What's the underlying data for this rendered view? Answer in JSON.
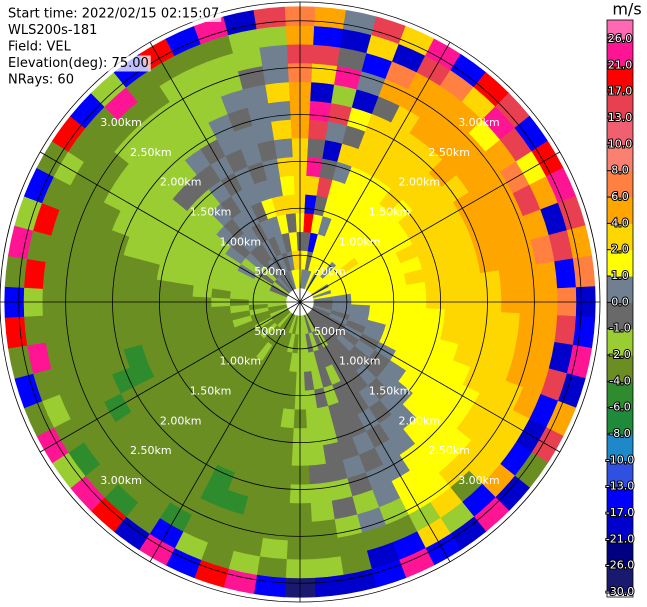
{
  "chart_data": {
    "type": "ppi",
    "annotations": [
      "Start time: 2022/02/15 02:15:07",
      "WLS200s-181",
      "Field: VEL",
      "Elevation(deg): 75.00",
      "NRays: 60"
    ],
    "colorbar_label": "m/s",
    "rlim": [
      0,
      3200
    ],
    "rticks": [
      {
        "value": 500,
        "label": "500m"
      },
      {
        "value": 1000,
        "label": "1.00km"
      },
      {
        "value": 1500,
        "label": "1.50km"
      },
      {
        "value": 2000,
        "label": "2.00km"
      },
      {
        "value": 2500,
        "label": "2.50km"
      },
      {
        "value": 3000,
        "label": "3.00km"
      }
    ],
    "ranges": [
      250,
      450,
      650,
      850,
      1050,
      1250,
      1450,
      1650,
      1850,
      2050,
      2250,
      2450,
      2650,
      2850,
      3050
    ],
    "azimuths": [
      0,
      6,
      12,
      18,
      24,
      30,
      36,
      42,
      48,
      54,
      60,
      66,
      72,
      78,
      84,
      90,
      96,
      102,
      108,
      114,
      120,
      126,
      132,
      138,
      144,
      150,
      156,
      162,
      168,
      174,
      180,
      186,
      192,
      198,
      204,
      210,
      216,
      222,
      228,
      234,
      240,
      246,
      252,
      258,
      264,
      270,
      276,
      282,
      288,
      294,
      300,
      306,
      312,
      318,
      324,
      330,
      336,
      342,
      348,
      354
    ],
    "cticks": [
      {
        "value": -30,
        "label": "-30.0"
      },
      {
        "value": -26,
        "label": "-26.0"
      },
      {
        "value": -21,
        "label": "-21.0"
      },
      {
        "value": -17,
        "label": "-17.0"
      },
      {
        "value": -13,
        "label": "-13.0"
      },
      {
        "value": -10,
        "label": "-10.0"
      },
      {
        "value": -8,
        "label": "-8.0"
      },
      {
        "value": -6,
        "label": "-6.0"
      },
      {
        "value": -4,
        "label": "-4.0"
      },
      {
        "value": -2,
        "label": "-2.0"
      },
      {
        "value": -1,
        "label": "-1.0"
      },
      {
        "value": 0,
        "label": "0.0"
      },
      {
        "value": 1,
        "label": "1.0"
      },
      {
        "value": 2,
        "label": "2.0"
      },
      {
        "value": 4,
        "label": "4.0"
      },
      {
        "value": 6,
        "label": "6.0"
      },
      {
        "value": 8,
        "label": "8.0"
      },
      {
        "value": 10,
        "label": "10.0"
      },
      {
        "value": 13,
        "label": "13.0"
      },
      {
        "value": 17,
        "label": "17.0"
      },
      {
        "value": 21,
        "label": "21.0"
      },
      {
        "value": 26,
        "label": "26.0"
      }
    ],
    "colors": [
      "#191970",
      "#000080",
      "#0000cd",
      "#0000ff",
      "#3050e0",
      "#1e88c8",
      "#1f8a3a",
      "#2e8b2e",
      "#6b8e23",
      "#9acd32",
      "#696969",
      "#708090",
      "#ffff00",
      "#ffd700",
      "#ffa500",
      "#ff8040",
      "#fa8072",
      "#f06070",
      "#e84050",
      "#ff0000",
      "#ff1493",
      "#ff69b4"
    ],
    "values": [
      [
        1.5,
        3,
        -0.5,
        1.5,
        3,
        3,
        3,
        3,
        5,
        5,
        5,
        7,
        15,
        5,
        7
      ],
      [
        0.5,
        1.5,
        -0.5,
        19,
        -15,
        3,
        23,
        -0.5,
        15,
        23,
        -19,
        3,
        15,
        -15,
        5
      ],
      [
        0.5,
        -0.5,
        -15,
        1.5,
        -0.5,
        15,
        -0.5,
        -19,
        0.5,
        15,
        -1.5,
        23,
        -0.5,
        -19,
        0.5
      ],
      [
        0.5,
        1.5,
        1.5,
        0.5,
        1.5,
        1.5,
        0.5,
        3,
        -0.5,
        1.5,
        -19,
        0.5,
        -15,
        3,
        15
      ],
      [
        1.5,
        1.5,
        1.5,
        1.5,
        1.5,
        1.5,
        1.5,
        3,
        3,
        3,
        -0.5,
        5,
        7,
        -19,
        3
      ],
      [
        0.5,
        1.5,
        1.5,
        1.5,
        1.5,
        1.5,
        1.5,
        3,
        3,
        3,
        3,
        5,
        5,
        15,
        23
      ],
      [
        1.5,
        1.5,
        1.5,
        1.5,
        1.5,
        1.5,
        1.5,
        3,
        3,
        3,
        5,
        5,
        5,
        7,
        -15
      ],
      [
        1.5,
        0.5,
        1.5,
        1.5,
        1.5,
        1.5,
        3,
        3,
        3,
        3,
        5,
        5,
        5,
        3,
        19
      ],
      [
        1.5,
        1.5,
        1.5,
        1.5,
        1.5,
        1.5,
        1.5,
        3,
        3,
        5,
        5,
        5,
        1.5,
        23,
        15
      ],
      [
        1.5,
        1.5,
        3,
        1.5,
        1.5,
        1.5,
        3,
        3,
        3,
        3,
        5,
        5,
        5,
        15,
        -15
      ],
      [
        0.5,
        1.5,
        1.5,
        1.5,
        1.5,
        1.5,
        3,
        3,
        3,
        5,
        5,
        5,
        7,
        1.5,
        19
      ],
      [
        1.5,
        1.5,
        1.5,
        1.5,
        1.5,
        3,
        3,
        3,
        3,
        5,
        5,
        5,
        15,
        5,
        23
      ],
      [
        0.5,
        1.5,
        1.5,
        1.5,
        1.5,
        1.5,
        3,
        3,
        3,
        5,
        5,
        5,
        5,
        -19,
        15
      ],
      [
        1.5,
        1.5,
        1.5,
        1.5,
        1.5,
        3,
        3,
        3,
        3,
        5,
        5,
        5,
        7,
        15,
        5
      ],
      [
        0.5,
        0.5,
        1.5,
        1.5,
        1.5,
        1.5,
        3,
        3,
        3,
        3,
        5,
        5,
        5,
        -15,
        7
      ],
      [
        -0.5,
        0.5,
        1.5,
        1.5,
        1.5,
        1.5,
        3,
        3,
        3,
        3,
        5,
        5,
        5,
        7,
        -19
      ],
      [
        -0.5,
        0.5,
        0.5,
        1.5,
        1.5,
        1.5,
        1.5,
        3,
        3,
        3,
        3,
        5,
        5,
        15,
        -15
      ],
      [
        -0.5,
        0.5,
        0.5,
        1.5,
        1.5,
        1.5,
        1.5,
        3,
        3,
        3,
        3,
        5,
        5,
        -19,
        23
      ],
      [
        0.5,
        -0.5,
        0.5,
        0.5,
        1.5,
        1.5,
        1.5,
        1.5,
        3,
        3,
        3,
        5,
        5,
        15,
        -19
      ],
      [
        -0.5,
        0.5,
        -0.5,
        0.5,
        1.5,
        1.5,
        1.5,
        1.5,
        1.5,
        3,
        3,
        3,
        5,
        -15,
        5
      ],
      [
        -0.5,
        -0.5,
        0.5,
        -0.5,
        0.5,
        1.5,
        1.5,
        1.5,
        1.5,
        1.5,
        3,
        3,
        3,
        -19,
        15
      ],
      [
        -0.5,
        -0.5,
        -0.5,
        0.5,
        -0.5,
        0.5,
        1.5,
        1.5,
        1.5,
        1.5,
        3,
        3,
        3,
        -15,
        -3
      ],
      [
        -0.5,
        -0.5,
        0.5,
        -0.5,
        -0.5,
        0.5,
        0.5,
        1.5,
        1.5,
        1.5,
        1.5,
        3,
        3,
        5,
        -19
      ],
      [
        -0.5,
        -0.5,
        -0.5,
        -0.5,
        0.5,
        -0.5,
        0.5,
        0.5,
        1.5,
        1.5,
        1.5,
        3,
        -3,
        -15,
        23
      ],
      [
        -0.5,
        -0.5,
        -0.5,
        -0.5,
        -0.5,
        0.5,
        -0.5,
        0.5,
        0.5,
        1.5,
        1.5,
        1.5,
        3,
        -1.5,
        -19
      ],
      [
        -0.5,
        -1.5,
        -0.5,
        -0.5,
        -0.5,
        -0.5,
        0.5,
        -0.5,
        0.5,
        0.5,
        1.5,
        1.5,
        -1.5,
        3,
        -15
      ],
      [
        -1.5,
        -0.5,
        -0.5,
        -1.5,
        -0.5,
        -0.5,
        -0.5,
        0.5,
        -0.5,
        0.5,
        0.5,
        -1.5,
        -3,
        -15,
        23
      ],
      [
        -0.5,
        -1.5,
        -0.5,
        -0.5,
        -1.5,
        -0.5,
        -0.5,
        -0.5,
        0.5,
        -0.5,
        -1.5,
        0.5,
        -3,
        -19,
        -15
      ],
      [
        -1.5,
        -0.5,
        -1.5,
        -1.5,
        -0.5,
        -1.5,
        -1.5,
        -0.5,
        -0.5,
        -1.5,
        -0.5,
        -1.5,
        -3,
        -3,
        -19
      ],
      [
        -1.5,
        -1.5,
        -1.5,
        -0.5,
        -1.5,
        -1.5,
        -1.5,
        -1.5,
        -0.5,
        -1.5,
        -1.5,
        -3,
        -3,
        -1.5,
        -19
      ],
      [
        -1.5,
        -1.5,
        -1.5,
        -1.5,
        -1.5,
        -3,
        -1.5,
        -1.5,
        -3,
        -1.5,
        -3,
        -3,
        -3,
        -1.5,
        -28
      ],
      [
        -1.5,
        -3,
        -1.5,
        -3,
        -3,
        -1.5,
        -3,
        -3,
        -3,
        -3,
        -3,
        -3,
        -1.5,
        -3,
        -15
      ],
      [
        -3,
        -1.5,
        -3,
        -3,
        -3,
        -3,
        -3,
        -3,
        -3,
        -3,
        -3,
        -3,
        -3,
        -1.5,
        23
      ],
      [
        -1.5,
        -3,
        -3,
        -3,
        -3,
        -3,
        -3,
        -3,
        -3,
        -3,
        -5,
        -3,
        -3,
        -3,
        19
      ],
      [
        -3,
        -3,
        -3,
        -3,
        -3,
        -3,
        -3,
        -3,
        -3,
        -5,
        -5,
        -3,
        -3,
        -1.5,
        -15
      ],
      [
        -3,
        -3,
        -3,
        -3,
        -3,
        -3,
        -3,
        -3,
        -3,
        -3,
        -3,
        -3,
        -5,
        -15,
        23
      ],
      [
        -3,
        -3,
        -1.5,
        -3,
        -3,
        -3,
        -3,
        -3,
        -3,
        -3,
        -3,
        -3,
        -3,
        -3,
        -19
      ],
      [
        -1.5,
        -3,
        -3,
        -3,
        -3,
        -3,
        -3,
        -3,
        -3,
        -3,
        -3,
        -3,
        -3,
        -5,
        19
      ],
      [
        -3,
        -1.5,
        -3,
        -3,
        -3,
        -3,
        -3,
        -3,
        -3,
        -3,
        -3,
        -3,
        -3,
        -3,
        23
      ],
      [
        -3,
        -3,
        -3,
        -3,
        -3,
        -3,
        -3,
        -3,
        -3,
        -3,
        -3,
        -3,
        -3,
        -5,
        -1.5
      ],
      [
        -3,
        -1.5,
        -3,
        -3,
        -3,
        -3,
        -3,
        -3,
        -3,
        -3,
        -5,
        -3,
        -3,
        -3,
        23
      ],
      [
        -1.5,
        -3,
        -3,
        -3,
        -3,
        -3,
        -3,
        -3,
        -5,
        -5,
        -3,
        -3,
        -3,
        -1.5,
        -3
      ],
      [
        -3,
        -3,
        -1.5,
        -3,
        -3,
        -3,
        -3,
        -3,
        -5,
        -3,
        -3,
        -3,
        -3,
        -3,
        -15
      ],
      [
        -3,
        -1.5,
        -3,
        -3,
        -3,
        -3,
        -3,
        -3,
        -3,
        -3,
        -3,
        -3,
        -3,
        23,
        -3
      ],
      [
        -1.5,
        -3,
        -1.5,
        -3,
        -3,
        -3,
        -3,
        -3,
        -3,
        -3,
        -3,
        -3,
        -3,
        -3,
        19
      ],
      [
        -1.5,
        -1.5,
        -3,
        -1.5,
        -3,
        -3,
        -3,
        -3,
        -3,
        -3,
        -3,
        -3,
        -3,
        -1.5,
        -15
      ],
      [
        -1.5,
        -1.5,
        -1.5,
        -3,
        -1.5,
        -3,
        -3,
        -3,
        -3,
        -3,
        -3,
        -3,
        -3,
        19,
        -3
      ],
      [
        -1.5,
        -1.5,
        -1.5,
        -1.5,
        -1.5,
        -1.5,
        -1.5,
        -3,
        -3,
        -3,
        -3,
        -3,
        -3,
        -3,
        23
      ],
      [
        -1.5,
        -1.5,
        -1.5,
        -1.5,
        -1.5,
        -1.5,
        -1.5,
        -1.5,
        -1.5,
        -3,
        -3,
        -3,
        -3,
        19,
        -1.5
      ],
      [
        -0.5,
        -1.5,
        -1.5,
        -1.5,
        -1.5,
        -1.5,
        -1.5,
        -1.5,
        -1.5,
        -1.5,
        -3,
        -3,
        -3,
        -3,
        -15
      ],
      [
        -0.5,
        -1.5,
        0.5,
        -1.5,
        -1.5,
        -1.5,
        -1.5,
        -1.5,
        -1.5,
        -1.5,
        -1.5,
        -3,
        -3,
        -1.5,
        -3
      ],
      [
        -1.5,
        -0.5,
        -1.5,
        0.5,
        -1.5,
        -1.5,
        -1.5,
        -1.5,
        -1.5,
        -1.5,
        -1.5,
        -3,
        -3,
        -3,
        19
      ],
      [
        -0.5,
        -1.5,
        0.5,
        -0.5,
        0.5,
        -1.5,
        -1.5,
        -0.5,
        -1.5,
        -1.5,
        -1.5,
        -1.5,
        -3,
        -3,
        -15
      ],
      [
        0.5,
        -0.5,
        -0.5,
        0.5,
        -0.5,
        0.5,
        -1.5,
        -0.5,
        -1.5,
        -1.5,
        -1.5,
        -1.5,
        -3,
        23,
        -1.5
      ],
      [
        -0.5,
        0.5,
        -0.5,
        0.5,
        0.5,
        -0.5,
        0.5,
        -0.5,
        0.5,
        -1.5,
        -1.5,
        -1.5,
        -3,
        -3,
        -15
      ],
      [
        0.5,
        -0.5,
        0.5,
        -0.5,
        0.5,
        0.5,
        -0.5,
        0.5,
        -0.5,
        -1.5,
        -1.5,
        -1.5,
        -1.5,
        -3,
        19
      ],
      [
        -0.5,
        0.5,
        -0.5,
        0.5,
        -0.5,
        0.5,
        0.5,
        -0.5,
        0.5,
        0.5,
        -1.5,
        -1.5,
        -1.5,
        -3,
        -15
      ],
      [
        0.5,
        -0.5,
        0.5,
        0.5,
        1.5,
        0.5,
        -0.5,
        0.5,
        0.5,
        -0.5,
        0.5,
        -1.5,
        -1.5,
        -3,
        23
      ],
      [
        1.5,
        0.5,
        -0.5,
        1.5,
        3,
        0.5,
        0.5,
        -0.5,
        0.5,
        0.5,
        0.5,
        -0.5,
        -1.5,
        -1.5,
        -19
      ],
      [
        1.5,
        3,
        1.5,
        -0.5,
        3,
        1.5,
        3,
        0.5,
        3,
        0.5,
        3,
        0.5,
        0.5,
        -1.5,
        15
      ]
    ]
  }
}
